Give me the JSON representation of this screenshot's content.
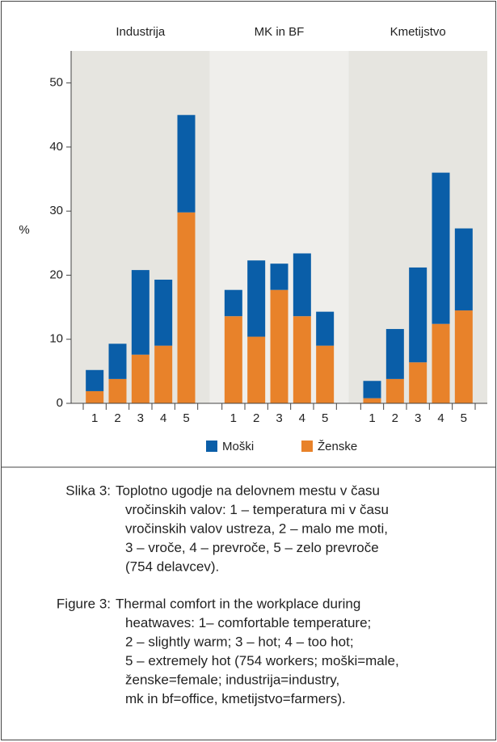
{
  "chart_data": {
    "type": "stacked_bar",
    "groups": [
      "Industrija",
      "MK in BF",
      "Kmetijstvo"
    ],
    "categories": [
      "1",
      "2",
      "3",
      "4",
      "5"
    ],
    "y_label": "%",
    "ylim": [
      0,
      55
    ],
    "yticks": [
      0,
      10,
      20,
      30,
      40,
      50
    ],
    "series": [
      {
        "name": "Ženske",
        "color": "#e8822a",
        "values": [
          [
            1.9,
            3.8,
            7.6,
            9.0,
            29.8
          ],
          [
            13.6,
            10.4,
            17.7,
            13.6,
            9.0
          ],
          [
            0.8,
            3.8,
            6.4,
            12.4,
            14.5
          ]
        ]
      },
      {
        "name": "Moški",
        "color": "#0a5ea8",
        "values": [
          [
            3.3,
            5.5,
            13.2,
            10.3,
            15.2
          ],
          [
            4.1,
            11.9,
            4.1,
            9.8,
            5.3
          ],
          [
            2.7,
            7.8,
            14.8,
            23.6,
            12.8
          ]
        ]
      }
    ],
    "legend_order": [
      1,
      0
    ]
  },
  "caption": {
    "slo": {
      "label": "Slika 3:",
      "lines": [
        "Toplotno ugodje na delovnem mestu v času",
        "vročinskih valov: 1 – temperatura mi v času",
        "vročinskih valov ustreza, 2 – malo me moti,",
        "3 – vroče, 4 – prevroče, 5 – zelo prevroče",
        "(754 delavcev)."
      ]
    },
    "eng": {
      "label": "Figure 3:",
      "lines": [
        "Thermal comfort in the workplace during",
        "heatwaves: 1– comfortable temperature;",
        "2 – slightly warm; 3 – hot; 4 – too hot;",
        "5 – extremely hot (754 workers; moški=male,",
        "ženske=female; industrija=industry,",
        "mk in bf=office, kmetijstvo=farmers)."
      ]
    }
  }
}
